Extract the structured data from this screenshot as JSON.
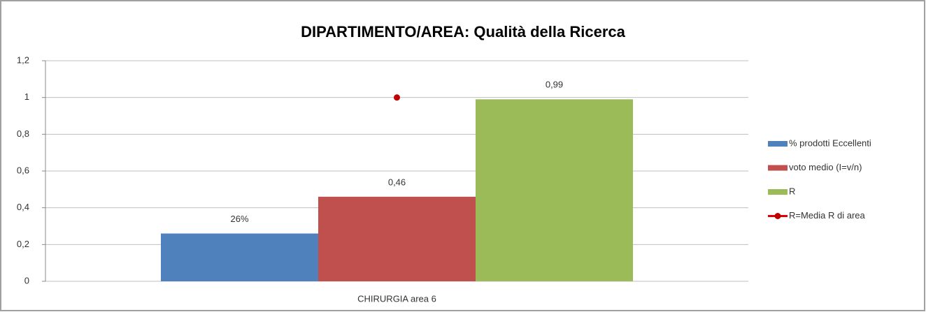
{
  "chart_data": {
    "type": "bar",
    "title": "DIPARTIMENTO/AREA: Qualità della Ricerca",
    "categories": [
      "CHIRURGIA area 6"
    ],
    "series": [
      {
        "name": "% prodotti Eccellenti",
        "color": "#4f81bd",
        "values": [
          0.26
        ],
        "value_labels": [
          "26%"
        ]
      },
      {
        "name": "voto medio (I=v/n)",
        "color": "#c0504d",
        "values": [
          0.46
        ],
        "value_labels": [
          "0,46"
        ]
      },
      {
        "name": "R",
        "color": "#9bbb59",
        "values": [
          0.99
        ],
        "value_labels": [
          "0,99"
        ]
      },
      {
        "name": "R=Media R di area",
        "color": "#e00000",
        "type": "line",
        "values": [
          1
        ]
      }
    ],
    "ylim": [
      0,
      1.2
    ],
    "yticks": [
      0,
      {
        "value": 0.2,
        "label": "0,2"
      },
      {
        "value": 0.4,
        "label": "0,4"
      },
      {
        "value": 0.6,
        "label": "0,6"
      },
      {
        "value": 0.8,
        "label": "0,8"
      },
      1,
      {
        "value": 1.2,
        "label": "1,2"
      }
    ],
    "grid": true,
    "legend": "right"
  }
}
